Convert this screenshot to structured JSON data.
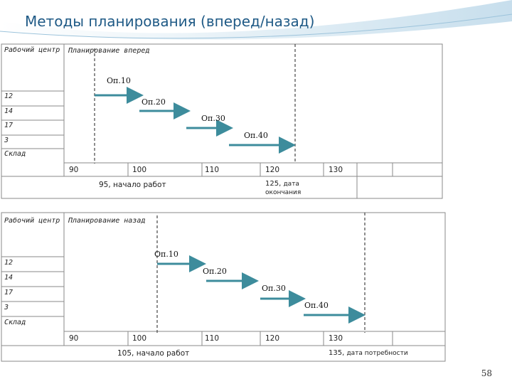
{
  "title": "Методы планирования (вперед/назад)",
  "page_number": "58",
  "colors": {
    "title": "#1f5a86",
    "arrow": "#3d8c9c",
    "grid": "#888888",
    "dashed": "#444444"
  },
  "forward": {
    "col_header": "Рабочий центр",
    "plan_label": "Планирование вперед",
    "rows": [
      "12",
      "14",
      "17",
      "3",
      "Склад"
    ],
    "ops": [
      "Оп.10",
      "Оп.20",
      "Оп.30",
      "Оп.40"
    ],
    "ticks": [
      "90",
      "100",
      "110",
      "120",
      "130"
    ],
    "start_note": "95, начало работ",
    "end_note_value": "125,",
    "end_note_text": "дата окончания"
  },
  "backward": {
    "col_header": "Рабочий центр",
    "plan_label": "Планирование назад",
    "rows": [
      "12",
      "14",
      "17",
      "3",
      "Склад"
    ],
    "ops": [
      "Оп.10",
      "Оп.20",
      "Оп.30",
      "Оп.40"
    ],
    "ticks": [
      "90",
      "100",
      "110",
      "120",
      "130"
    ],
    "start_note": "105, начало работ",
    "end_note_value": "135,",
    "end_note_text": "дата потребности"
  }
}
